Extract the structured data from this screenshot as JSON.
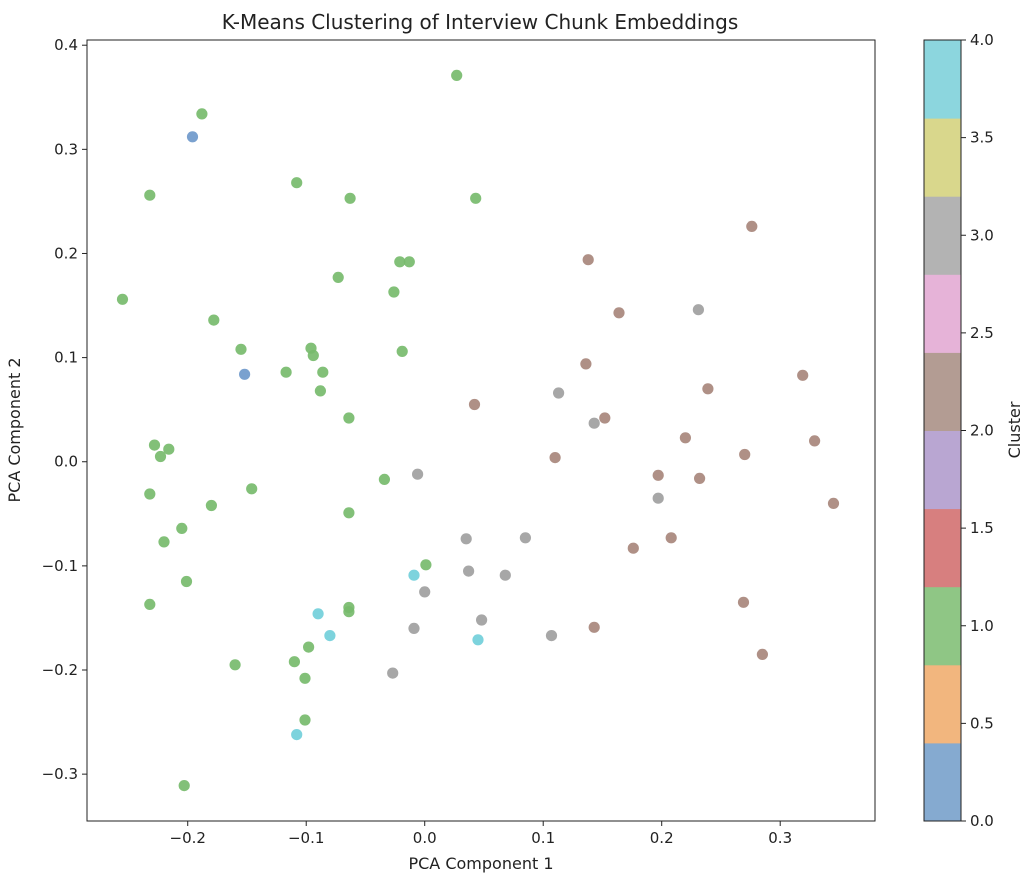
{
  "chart_data": {
    "type": "scatter",
    "title": "K-Means Clustering of Interview Chunk Embeddings",
    "xlabel": "PCA Component 1",
    "ylabel": "PCA Component 2",
    "xlim": [
      -0.285,
      0.38
    ],
    "ylim": [
      -0.345,
      0.405
    ],
    "xticks": [
      -0.2,
      -0.1,
      0.0,
      0.1,
      0.2,
      0.3
    ],
    "xtick_labels": [
      "−0.2",
      "−0.1",
      "0.0",
      "0.1",
      "0.2",
      "0.3"
    ],
    "yticks": [
      -0.3,
      -0.2,
      -0.1,
      0.0,
      0.1,
      0.2,
      0.3,
      0.4
    ],
    "ytick_labels": [
      "−0.3",
      "−0.2",
      "−0.1",
      "0.0",
      "0.1",
      "0.2",
      "0.3",
      "0.4"
    ],
    "grid": false,
    "colorbar": {
      "label": "Cluster",
      "range": [
        0,
        4
      ],
      "ticks": [
        0.0,
        0.5,
        1.0,
        1.5,
        2.0,
        2.5,
        3.0,
        3.5,
        4.0
      ],
      "tick_labels": [
        "0.0",
        "0.5",
        "1.0",
        "1.5",
        "2.0",
        "2.5",
        "3.0",
        "3.5",
        "4.0"
      ],
      "colormap_bands": [
        "#85aad0",
        "#f2b67e",
        "#8fc685",
        "#d77f7f",
        "#b9a6d2",
        "#b39c93",
        "#e6b3d8",
        "#b3b3b3",
        "#d9d78c",
        "#8cd6de"
      ]
    },
    "cluster_colors": {
      "0": "#6f99cb",
      "1": "#77bb6d",
      "2": "#a8877c",
      "3": "#a0a0a0",
      "4": "#72cfda"
    },
    "series": [
      {
        "cluster": 0,
        "points": [
          [
            -0.196,
            0.312
          ],
          [
            -0.152,
            0.084
          ]
        ]
      },
      {
        "cluster": 1,
        "points": [
          [
            -0.188,
            0.334
          ],
          [
            0.027,
            0.371
          ],
          [
            -0.232,
            0.256
          ],
          [
            -0.108,
            0.268
          ],
          [
            -0.063,
            0.253
          ],
          [
            0.043,
            0.253
          ],
          [
            -0.021,
            0.192
          ],
          [
            -0.013,
            0.192
          ],
          [
            -0.073,
            0.177
          ],
          [
            -0.026,
            0.163
          ],
          [
            -0.255,
            0.156
          ],
          [
            -0.178,
            0.136
          ],
          [
            -0.155,
            0.108
          ],
          [
            -0.096,
            0.109
          ],
          [
            -0.094,
            0.102
          ],
          [
            -0.019,
            0.106
          ],
          [
            -0.117,
            0.086
          ],
          [
            -0.086,
            0.086
          ],
          [
            -0.088,
            0.068
          ],
          [
            -0.064,
            0.042
          ],
          [
            -0.228,
            0.016
          ],
          [
            -0.216,
            0.012
          ],
          [
            -0.223,
            0.005
          ],
          [
            -0.034,
            -0.017
          ],
          [
            -0.146,
            -0.026
          ],
          [
            -0.232,
            -0.031
          ],
          [
            -0.18,
            -0.042
          ],
          [
            -0.064,
            -0.049
          ],
          [
            -0.205,
            -0.064
          ],
          [
            -0.22,
            -0.077
          ],
          [
            0.001,
            -0.099
          ],
          [
            -0.201,
            -0.115
          ],
          [
            -0.232,
            -0.137
          ],
          [
            -0.064,
            -0.14
          ],
          [
            -0.064,
            -0.144
          ],
          [
            -0.098,
            -0.178
          ],
          [
            -0.16,
            -0.195
          ],
          [
            -0.11,
            -0.192
          ],
          [
            -0.101,
            -0.208
          ],
          [
            -0.101,
            -0.248
          ],
          [
            -0.203,
            -0.311
          ]
        ]
      },
      {
        "cluster": 2,
        "points": [
          [
            0.276,
            0.226
          ],
          [
            0.138,
            0.194
          ],
          [
            0.164,
            0.143
          ],
          [
            0.136,
            0.094
          ],
          [
            0.319,
            0.083
          ],
          [
            0.239,
            0.07
          ],
          [
            0.042,
            0.055
          ],
          [
            0.152,
            0.042
          ],
          [
            0.22,
            0.023
          ],
          [
            0.329,
            0.02
          ],
          [
            0.11,
            0.004
          ],
          [
            0.27,
            0.007
          ],
          [
            0.197,
            -0.013
          ],
          [
            0.232,
            -0.016
          ],
          [
            0.345,
            -0.04
          ],
          [
            0.208,
            -0.073
          ],
          [
            0.176,
            -0.083
          ],
          [
            0.269,
            -0.135
          ],
          [
            0.143,
            -0.159
          ],
          [
            0.285,
            -0.185
          ]
        ]
      },
      {
        "cluster": 3,
        "points": [
          [
            0.231,
            0.146
          ],
          [
            0.113,
            0.066
          ],
          [
            0.143,
            0.037
          ],
          [
            -0.006,
            -0.012
          ],
          [
            0.197,
            -0.035
          ],
          [
            0.035,
            -0.074
          ],
          [
            0.085,
            -0.073
          ],
          [
            0.037,
            -0.105
          ],
          [
            0.068,
            -0.109
          ],
          [
            0.0,
            -0.125
          ],
          [
            0.048,
            -0.152
          ],
          [
            -0.009,
            -0.16
          ],
          [
            0.107,
            -0.167
          ],
          [
            -0.027,
            -0.203
          ]
        ]
      },
      {
        "cluster": 4,
        "points": [
          [
            -0.009,
            -0.109
          ],
          [
            -0.09,
            -0.146
          ],
          [
            -0.08,
            -0.167
          ],
          [
            0.045,
            -0.171
          ],
          [
            -0.108,
            -0.262
          ]
        ]
      }
    ]
  }
}
